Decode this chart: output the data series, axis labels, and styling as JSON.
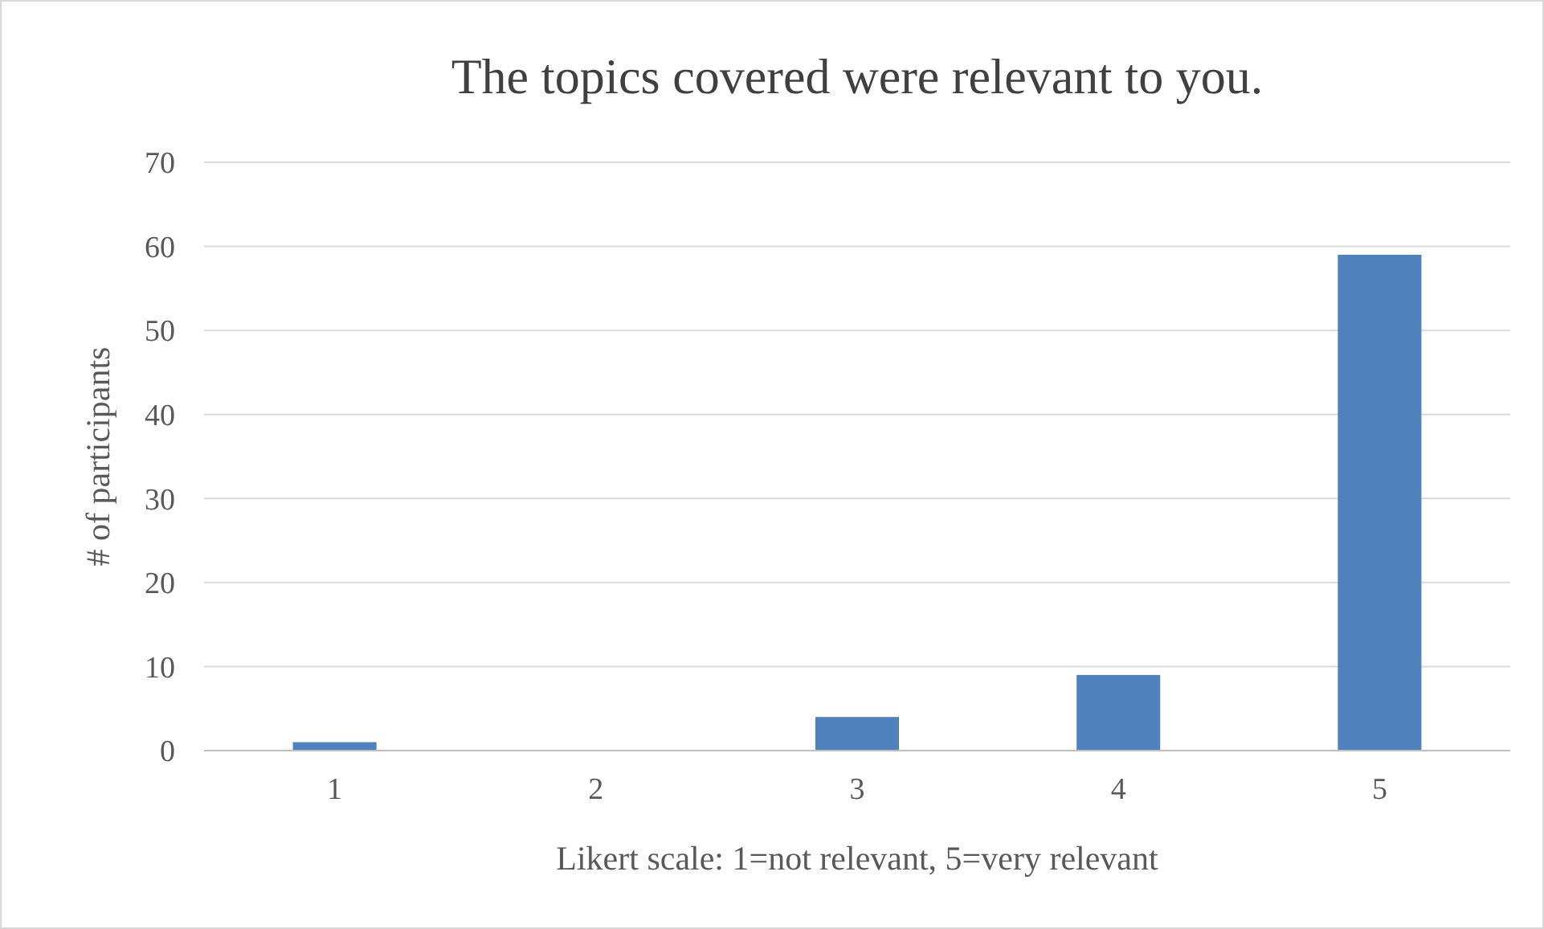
{
  "chart_data": {
    "type": "bar",
    "title": "The topics covered were relevant to you.",
    "xlabel": "Likert scale: 1=not relevant, 5=very relevant",
    "ylabel": "# of participants",
    "categories": [
      "1",
      "2",
      "3",
      "4",
      "5"
    ],
    "values": [
      1,
      0,
      4,
      9,
      59
    ],
    "color": "#4f81bd",
    "ylim": [
      0,
      70
    ],
    "yticks": [
      0,
      10,
      20,
      30,
      40,
      50,
      60,
      70
    ],
    "grid": "y"
  }
}
